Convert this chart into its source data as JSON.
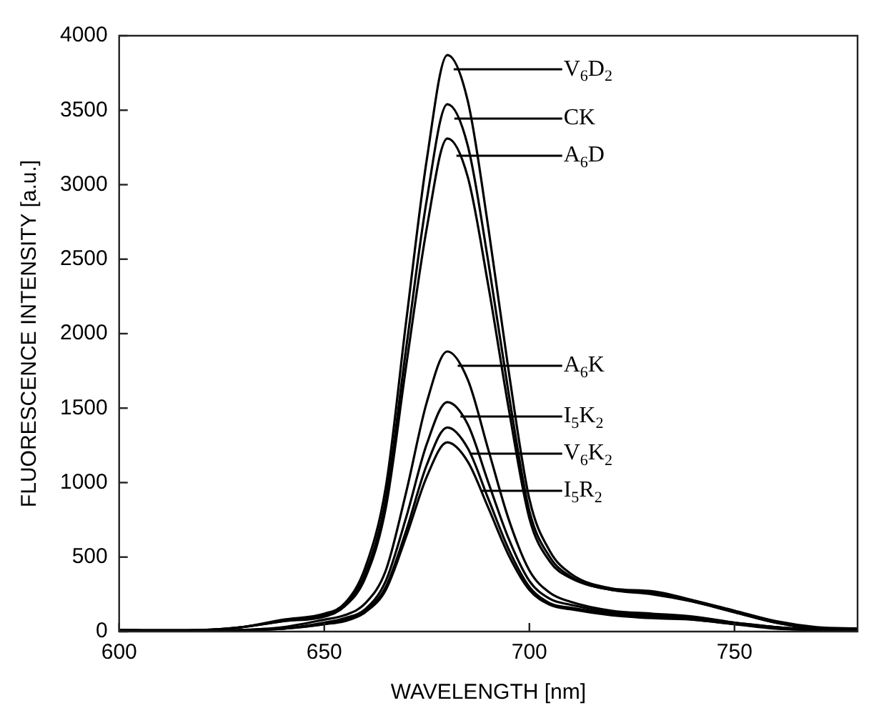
{
  "chart_data": {
    "type": "line",
    "xlabel": "WAVELENGTH [nm]",
    "ylabel": "FLUORESCENCE INTENSITY [a.u.]",
    "x": [
      600,
      620,
      630,
      640,
      650,
      655,
      660,
      665,
      670,
      675,
      680,
      685,
      690,
      695,
      700,
      705,
      710,
      720,
      730,
      740,
      750,
      760,
      770,
      780
    ],
    "xlim": [
      600,
      780
    ],
    "xticks": [
      600,
      650,
      700,
      750
    ],
    "ylim": [
      0,
      4000
    ],
    "yticks": [
      0,
      500,
      1000,
      1500,
      2000,
      2500,
      3000,
      3500,
      4000
    ],
    "grid": false,
    "legend": "top right",
    "marker": "none",
    "line_style": "solid",
    "series": [
      {
        "name": "V$_{6}$D$_{2}$",
        "color": "#000000",
        "values": [
          0,
          10,
          30,
          80,
          120,
          190,
          430,
          970,
          2090,
          3170,
          3870,
          3560,
          2710,
          1740,
          890,
          540,
          390,
          290,
          270,
          210,
          140,
          70,
          30,
          20
        ]
      },
      {
        "name": "CK",
        "color": "#000000",
        "values": [
          10,
          10,
          30,
          70,
          110,
          180,
          390,
          890,
          1910,
          2900,
          3540,
          3260,
          2480,
          1590,
          810,
          500,
          370,
          280,
          260,
          200,
          130,
          60,
          20,
          20
        ]
      },
      {
        "name": "A$_{6}$D",
        "color": "#000000",
        "values": [
          0,
          10,
          30,
          70,
          100,
          170,
          360,
          830,
          1790,
          2710,
          3310,
          3050,
          2320,
          1490,
          760,
          470,
          360,
          280,
          250,
          200,
          130,
          60,
          20,
          10
        ]
      },
      {
        "name": "A$_{6}$K",
        "color": "#000000",
        "values": [
          10,
          0,
          10,
          30,
          80,
          110,
          190,
          410,
          940,
          1540,
          1880,
          1690,
          1220,
          750,
          410,
          260,
          200,
          140,
          120,
          100,
          60,
          30,
          10,
          10
        ]
      },
      {
        "name": "I$_{5}$K$_{2}$",
        "color": "#000000",
        "values": [
          0,
          0,
          10,
          20,
          60,
          90,
          150,
          340,
          770,
          1260,
          1540,
          1390,
          1000,
          620,
          340,
          220,
          180,
          130,
          110,
          90,
          60,
          30,
          10,
          0
        ]
      },
      {
        "name": "V$_{6}$K$_{2}$",
        "color": "#000000",
        "values": [
          10,
          0,
          10,
          20,
          50,
          80,
          140,
          300,
          680,
          1120,
          1370,
          1230,
          890,
          550,
          300,
          190,
          160,
          120,
          100,
          80,
          50,
          30,
          10,
          0
        ]
      },
      {
        "name": "I$_{5}$R$_{2}$",
        "color": "#000000",
        "x": [
          610,
          620,
          630,
          640,
          650,
          655,
          660,
          665,
          670,
          675,
          680,
          685,
          690,
          695,
          700,
          705,
          710,
          720,
          730,
          740,
          750,
          760,
          770,
          780
        ],
        "values": [
          0,
          0,
          10,
          20,
          50,
          70,
          130,
          280,
          640,
          1040,
          1270,
          1140,
          830,
          510,
          280,
          180,
          150,
          110,
          90,
          80,
          50,
          20,
          10,
          0
        ]
      }
    ]
  }
}
